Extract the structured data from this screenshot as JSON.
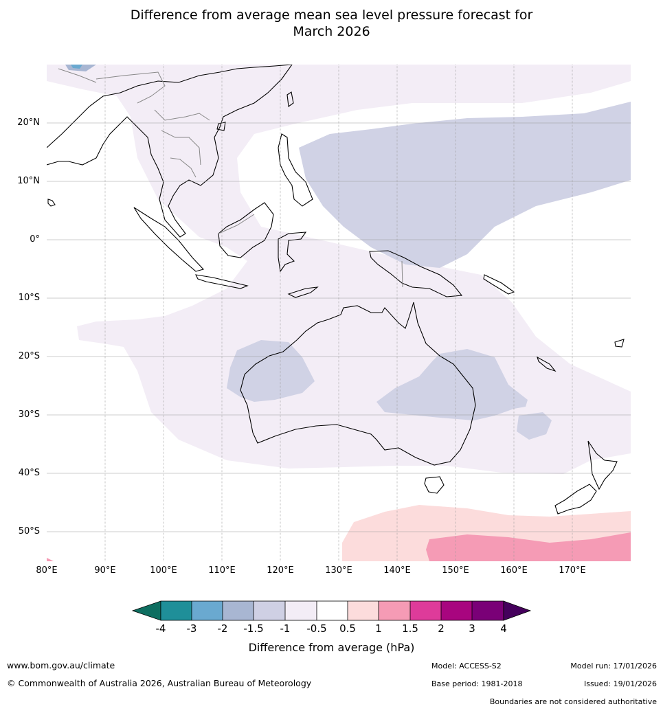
{
  "title_line1": "Difference from average mean sea level pressure forecast for",
  "title_line2": "March 2026",
  "map": {
    "lat_labels": [
      "20°N",
      "10°N",
      "0°",
      "10°S",
      "20°S",
      "30°S",
      "40°S",
      "50°S"
    ],
    "lon_labels": [
      "80°E",
      "90°E",
      "100°E",
      "110°E",
      "120°E",
      "130°E",
      "140°E",
      "150°E",
      "160°E",
      "170°E"
    ],
    "lon_range": [
      80,
      180
    ],
    "lat_range": [
      -55,
      30
    ],
    "anomaly_regions": [
      {
        "name": "broad-weak-negative",
        "category": "-1 to -0.5"
      },
      {
        "name": "tropical-west-pacific-low",
        "category": "-1.5 to -1"
      },
      {
        "name": "western-australia-low",
        "category": "-1.5 to -1"
      },
      {
        "name": "eastern-australia-low",
        "category": "-1.5 to -1"
      },
      {
        "name": "southern-ocean-high",
        "category": "0.5 to 1"
      },
      {
        "name": "southern-ocean-strong-high",
        "category": "1 to 1.5"
      }
    ]
  },
  "colorbar": {
    "ticks": [
      "-4",
      "-3",
      "-2",
      "-1.5",
      "-1",
      "-0.5",
      "0.5",
      "1",
      "1.5",
      "2",
      "3",
      "4"
    ],
    "colors": [
      "#0e6e60",
      "#1f8f99",
      "#6aa9d0",
      "#a8b6d2",
      "#cfd0e4",
      "#f3edf6",
      "#ffffff",
      "#fcdcdc",
      "#f59bb5",
      "#de3b9a",
      "#a8057f",
      "#7a0077",
      "#45005c"
    ],
    "label": "Difference from average (hPa)"
  },
  "footer": {
    "website": "www.bom.gov.au/climate",
    "copyright": "© Commonwealth of Australia 2026, Australian Bureau of Meteorology",
    "model": "Model: ACCESS-S2",
    "base_period": "Base period: 1981-2018",
    "model_run": "Model run: 17/01/2026",
    "issued": "Issued: 19/01/2026",
    "disclaimer": "Boundaries are not considered authoritative"
  }
}
